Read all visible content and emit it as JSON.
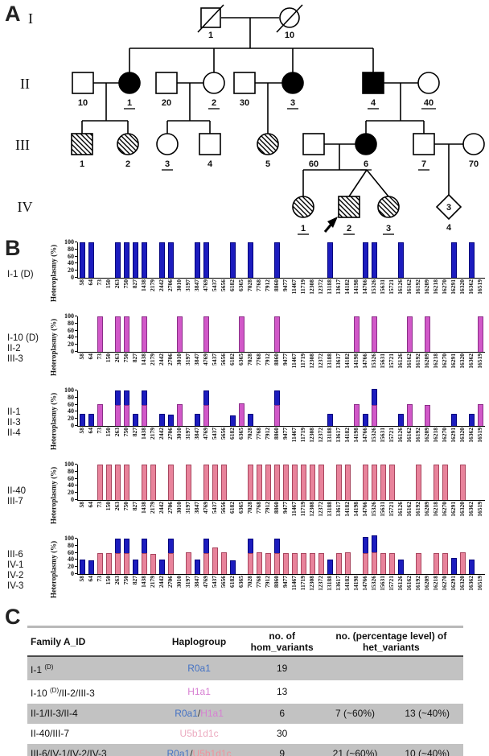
{
  "figure": {
    "panel_a_label": "A",
    "panel_b_label": "B",
    "panel_c_label": "C"
  },
  "pedigree": {
    "generation_labels": [
      "I",
      "II",
      "III",
      "IV"
    ],
    "individuals": {
      "I_1": "1",
      "I_10": "10",
      "II_10": "10",
      "II_1": "1",
      "II_20": "20",
      "II_2": "2",
      "II_30": "30",
      "II_3": "3",
      "II_4": "4",
      "II_40": "40",
      "III_1": "1",
      "III_2": "2",
      "III_3": "3",
      "III_4": "4",
      "III_5": "5",
      "III_60": "60",
      "III_6": "6",
      "III_7": "7",
      "III_70": "70",
      "IV_1": "1",
      "IV_2": "2",
      "IV_3": "3",
      "IV_4": "4",
      "IV_4_count": "3"
    }
  },
  "chart_data": {
    "type": "bar",
    "ylabel": "Heteroplasmy (%)",
    "ylim": [
      0,
      100
    ],
    "yticks": [
      0,
      20,
      40,
      60,
      80,
      100
    ],
    "legend": "none",
    "positions": [
      "58",
      "64",
      "73",
      "150",
      "263",
      "750",
      "827",
      "1438",
      "2179",
      "2442",
      "2706",
      "3010",
      "3197",
      "3847",
      "4769",
      "5437",
      "5656",
      "6182",
      "6365",
      "7028",
      "7768",
      "7912",
      "8860",
      "9477",
      "11467",
      "11719",
      "12308",
      "12372",
      "13188",
      "13617",
      "14182",
      "14198",
      "14766",
      "15326",
      "15631",
      "15721",
      "16126",
      "16162",
      "16192",
      "16209",
      "16218",
      "16270",
      "16291",
      "16320",
      "16362",
      "16519"
    ],
    "charts": [
      {
        "row_labels": [
          "I-1 (D)"
        ],
        "series": [
          {
            "name": "R0a1 homoplasmic",
            "color": "#1c1cbe",
            "border": "#00007d",
            "values": [
              100,
              100,
              0,
              0,
              100,
              100,
              100,
              100,
              0,
              100,
              100,
              0,
              0,
              100,
              100,
              0,
              0,
              100,
              0,
              100,
              0,
              0,
              100,
              0,
              0,
              0,
              0,
              0,
              100,
              0,
              0,
              0,
              100,
              100,
              0,
              0,
              100,
              0,
              0,
              0,
              0,
              0,
              100,
              0,
              100,
              0
            ]
          }
        ]
      },
      {
        "row_labels": [
          "I-10 (D)",
          "II-2",
          "III-3"
        ],
        "series": [
          {
            "name": "H1a1 homoplasmic",
            "color": "#d158c8",
            "border": "#8b2f88",
            "values": [
              0,
              0,
              100,
              0,
              100,
              100,
              0,
              100,
              0,
              0,
              0,
              100,
              0,
              0,
              100,
              0,
              0,
              0,
              100,
              0,
              0,
              0,
              100,
              0,
              0,
              0,
              0,
              0,
              0,
              0,
              0,
              100,
              0,
              100,
              0,
              0,
              0,
              100,
              0,
              100,
              0,
              0,
              0,
              0,
              0,
              100
            ]
          }
        ]
      },
      {
        "row_labels": [
          "II-1",
          "II-3",
          "II-4"
        ],
        "series": [
          {
            "name": "H1a1 heteroplasmic (~60%)",
            "color": "#d158c8",
            "border": "#8b2f88",
            "values": [
              0,
              0,
              62,
              0,
              58,
              58,
              0,
              58,
              0,
              0,
              0,
              62,
              0,
              0,
              58,
              0,
              0,
              0,
              63,
              0,
              0,
              0,
              58,
              0,
              0,
              0,
              0,
              0,
              0,
              0,
              0,
              62,
              0,
              60,
              0,
              0,
              0,
              62,
              0,
              60,
              0,
              0,
              0,
              0,
              0,
              62
            ]
          },
          {
            "name": "R0a1 heteroplasmic (~40%)",
            "color": "#1c1cbe",
            "border": "#00007d",
            "values": [
              35,
              35,
              0,
              0,
              42,
              42,
              35,
              42,
              0,
              34,
              32,
              0,
              0,
              34,
              42,
              0,
              0,
              30,
              0,
              33,
              0,
              0,
              42,
              0,
              0,
              0,
              0,
              0,
              35,
              0,
              0,
              0,
              35,
              45,
              0,
              0,
              33,
              0,
              0,
              0,
              0,
              0,
              35,
              0,
              33,
              0
            ]
          }
        ]
      },
      {
        "row_labels": [
          "II-40",
          "III-7"
        ],
        "series": [
          {
            "name": "U5b1d1c homoplasmic",
            "color": "#e8839b",
            "border": "#a8455e",
            "values": [
              0,
              0,
              100,
              100,
              100,
              100,
              0,
              100,
              100,
              0,
              100,
              0,
              100,
              0,
              100,
              100,
              100,
              0,
              0,
              100,
              100,
              100,
              100,
              100,
              100,
              100,
              100,
              100,
              0,
              100,
              100,
              0,
              100,
              100,
              100,
              100,
              0,
              0,
              100,
              0,
              100,
              100,
              0,
              100,
              0,
              0
            ]
          }
        ]
      },
      {
        "row_labels": [
          "III-6",
          "IV-1",
          "IV-2",
          "IV-3"
        ],
        "series": [
          {
            "name": "U5b1d1c heteroplasmic (~60%)",
            "color": "#e8839b",
            "border": "#a8455e",
            "values": [
              0,
              0,
              60,
              60,
              58,
              58,
              0,
              58,
              56,
              0,
              58,
              0,
              62,
              0,
              58,
              76,
              61,
              0,
              0,
              58,
              61,
              59,
              58,
              58,
              60,
              58,
              58,
              58,
              0,
              60,
              62,
              0,
              60,
              62,
              60,
              60,
              0,
              0,
              60,
              0,
              58,
              60,
              0,
              62,
              0,
              0
            ]
          },
          {
            "name": "R0a1 heteroplasmic (~40%)",
            "color": "#1c1cbe",
            "border": "#00007d",
            "values": [
              40,
              38,
              0,
              0,
              42,
              42,
              41,
              42,
              0,
              40,
              42,
              0,
              0,
              40,
              42,
              0,
              0,
              38,
              0,
              42,
              0,
              0,
              42,
              0,
              0,
              0,
              0,
              0,
              40,
              0,
              0,
              0,
              45,
              48,
              0,
              0,
              42,
              0,
              0,
              0,
              0,
              0,
              45,
              0,
              42,
              0
            ]
          }
        ]
      }
    ]
  },
  "table": {
    "headers": {
      "family_id": "Family A_ID",
      "haplogroup": "Haplogroup",
      "hom_line1": "no. of",
      "hom_line2": "hom_variants",
      "het_line1": "no. (percentage level) of",
      "het_line2": "het_variants"
    },
    "rows": [
      {
        "shaded": true,
        "id": [
          {
            "t": "I-1 "
          },
          {
            "t": "(D)",
            "sup": true
          }
        ],
        "haplogroup": [
          {
            "t": "R0a1",
            "color": "#4472c4"
          }
        ],
        "hom": "19",
        "het1": "",
        "het2": ""
      },
      {
        "shaded": false,
        "id": [
          {
            "t": "I-10 "
          },
          {
            "t": "(D)",
            "sup": true
          },
          {
            "t": "/II-2/III-3"
          }
        ],
        "haplogroup": [
          {
            "t": "H1a1",
            "color": "#d77fd2"
          }
        ],
        "hom": "13",
        "het1": "",
        "het2": ""
      },
      {
        "shaded": true,
        "id": [
          {
            "t": "II-1/II-3/II-4"
          }
        ],
        "haplogroup": [
          {
            "t": "R0a1",
            "color": "#4472c4"
          },
          {
            "t": "/",
            "color": "#333333"
          },
          {
            "t": "H1a1",
            "color": "#d77fd2"
          }
        ],
        "hom": "6",
        "het1": "7 (~60%)",
        "het2": "13 (~40%)"
      },
      {
        "shaded": false,
        "id": [
          {
            "t": "II-40/III-7"
          }
        ],
        "haplogroup": [
          {
            "t": "U5b1d1c",
            "color": "#ecaabf"
          }
        ],
        "hom": "30",
        "het1": "",
        "het2": ""
      },
      {
        "shaded": true,
        "id": [
          {
            "t": "III-6/IV-1/IV-2/IV-3"
          }
        ],
        "haplogroup": [
          {
            "t": "R0a1",
            "color": "#4472c4"
          },
          {
            "t": "/",
            "color": "#333333"
          },
          {
            "t": "U5b1d1c",
            "color": "#f2919b"
          }
        ],
        "hom": "9",
        "het1": "21 (~60%)",
        "het2": "10 (~40%)"
      }
    ]
  },
  "colors": {
    "blue": "#1c1cbe",
    "magenta": "#d158c8",
    "pink": "#e8839b",
    "row_shade": "#c2c2c2"
  }
}
